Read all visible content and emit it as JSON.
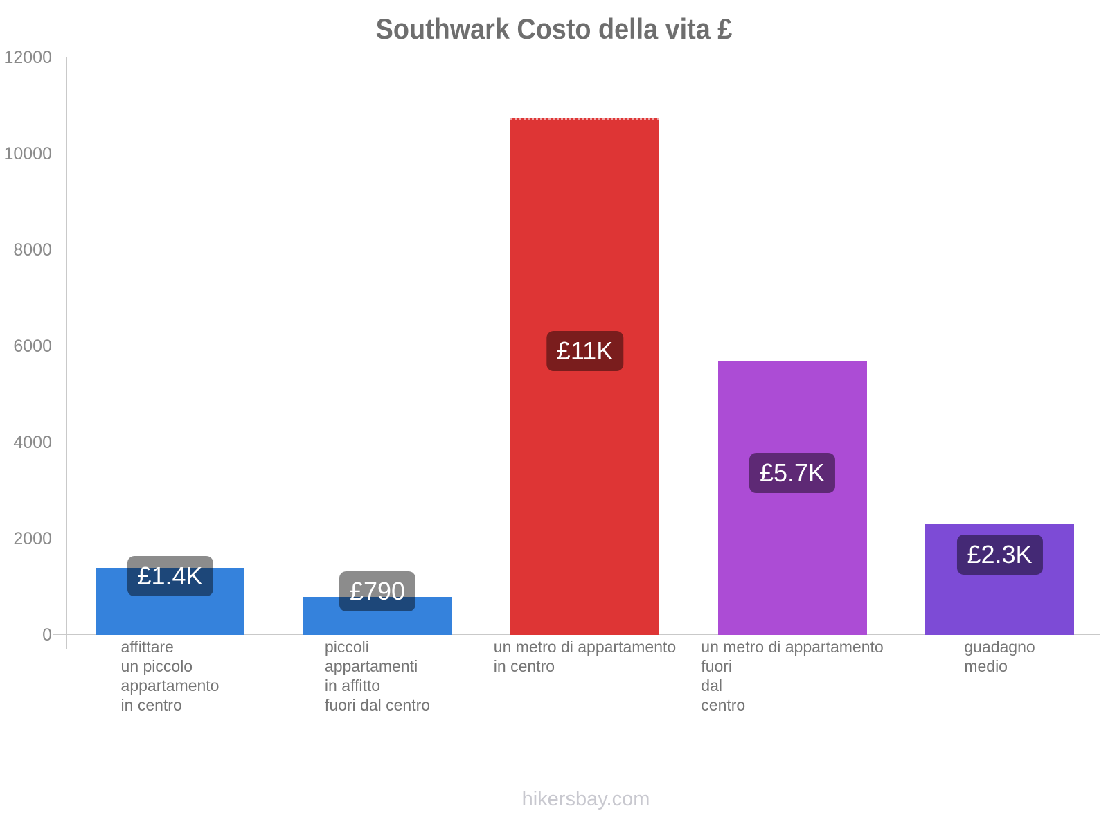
{
  "title": "Southwark Costo della vita £",
  "footer": "hikersbay.com",
  "chart_data": {
    "type": "bar",
    "title": "Southwark Costo della vita £",
    "currency": "£",
    "categories": [
      [
        "affittare",
        "un piccolo",
        "appartamento",
        "in centro"
      ],
      [
        "piccoli",
        "appartamenti",
        "in affitto",
        "fuori dal centro"
      ],
      [
        "un metro di appartamento",
        "in centro"
      ],
      [
        "un metro di appartamento",
        "fuori",
        "dal",
        "centro"
      ],
      [
        "guadagno",
        "medio"
      ]
    ],
    "values": [
      1400,
      790,
      10750,
      5700,
      2300
    ],
    "value_labels": [
      "£1.4K",
      "£790",
      "£11K",
      "£5.7K",
      "£2.3K"
    ],
    "bar_colors": [
      "#3582DC",
      "#3582DC",
      "#DE3535",
      "#AC4CD5",
      "#7D4BD6"
    ],
    "badge_bg": "rgba(0,0,0,0.45)",
    "badge_text_color": "#ffffff",
    "axis_color": "#c9c9c9",
    "title_color": "#6e6e6e",
    "tick_label_color": "#8a8a8a",
    "category_label_color": "#757575",
    "ylim": [
      0,
      12000
    ],
    "yticks": [
      0,
      2000,
      4000,
      6000,
      8000,
      10000,
      12000
    ],
    "ytick_labels": [
      "0",
      "2000",
      "4000",
      "6000",
      "8000",
      "10000",
      "12000"
    ],
    "grid": false,
    "legend": null,
    "xlabel": "",
    "ylabel": ""
  }
}
